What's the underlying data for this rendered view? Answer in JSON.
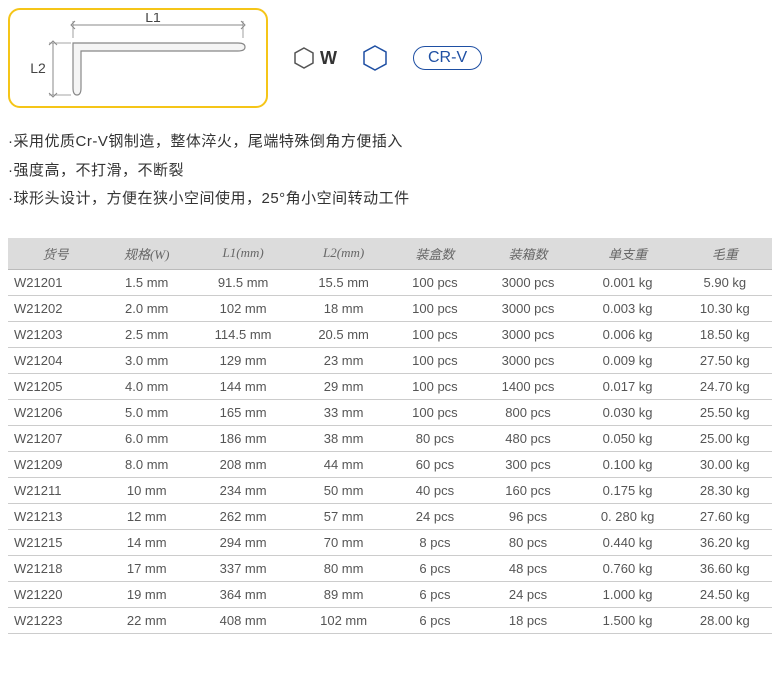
{
  "diagram": {
    "l1_label": "L1",
    "l2_label": "L2",
    "w_label": "W",
    "crv_label": "CR-V",
    "border_color": "#f5c518",
    "stroke_color": "#888888",
    "blue_color": "#1e4fa3"
  },
  "features": [
    "·采用优质Cr-V钢制造，整体淬火，尾端特殊倒角方便插入",
    "·强度高，不打滑，不断裂",
    "·球形头设计，方便在狭小空间使用，25°角小空间转动工件"
  ],
  "table": {
    "columns": [
      "货号",
      "规格(W)",
      "L1(mm)",
      "L2(mm)",
      "装盒数",
      "装箱数",
      "单支重",
      "毛重"
    ],
    "header_bg": "#dcdcdc",
    "border_color": "#cccccc",
    "rows": [
      [
        "W21201",
        "1.5 mm",
        "91.5 mm",
        "15.5 mm",
        "100 pcs",
        "3000 pcs",
        "0.001 kg",
        "5.90 kg"
      ],
      [
        "W21202",
        "2.0 mm",
        "102 mm",
        "18 mm",
        "100 pcs",
        "3000 pcs",
        "0.003 kg",
        "10.30 kg"
      ],
      [
        "W21203",
        "2.5 mm",
        "114.5 mm",
        "20.5 mm",
        "100 pcs",
        "3000 pcs",
        "0.006 kg",
        "18.50 kg"
      ],
      [
        "W21204",
        "3.0 mm",
        "129 mm",
        "23 mm",
        "100 pcs",
        "3000 pcs",
        "0.009 kg",
        "27.50 kg"
      ],
      [
        "W21205",
        "4.0 mm",
        "144 mm",
        "29 mm",
        "100 pcs",
        "1400 pcs",
        "0.017 kg",
        "24.70 kg"
      ],
      [
        "W21206",
        "5.0 mm",
        "165 mm",
        "33 mm",
        "100 pcs",
        "800 pcs",
        "0.030 kg",
        "25.50 kg"
      ],
      [
        "W21207",
        "6.0 mm",
        "186 mm",
        "38 mm",
        "80 pcs",
        "480 pcs",
        "0.050 kg",
        "25.00 kg"
      ],
      [
        "W21209",
        "8.0 mm",
        "208 mm",
        "44 mm",
        "60 pcs",
        "300 pcs",
        "0.100 kg",
        "30.00 kg"
      ],
      [
        "W21211",
        "10 mm",
        "234 mm",
        "50 mm",
        "40 pcs",
        "160 pcs",
        "0.175 kg",
        "28.30 kg"
      ],
      [
        "W21213",
        "12 mm",
        "262 mm",
        "57 mm",
        "24 pcs",
        "96 pcs",
        "0. 280 kg",
        "27.60 kg"
      ],
      [
        "W21215",
        "14 mm",
        "294 mm",
        "70 mm",
        "8 pcs",
        "80 pcs",
        "0.440 kg",
        "36.20 kg"
      ],
      [
        "W21218",
        "17 mm",
        "337 mm",
        "80 mm",
        "6 pcs",
        "48 pcs",
        "0.760 kg",
        "36.60 kg"
      ],
      [
        "W21220",
        "19 mm",
        "364 mm",
        "89 mm",
        "6 pcs",
        "24 pcs",
        "1.000 kg",
        "24.50 kg"
      ],
      [
        "W21223",
        "22 mm",
        "408 mm",
        "102 mm",
        "6 pcs",
        "18 pcs",
        "1.500 kg",
        "28.00 kg"
      ]
    ]
  }
}
